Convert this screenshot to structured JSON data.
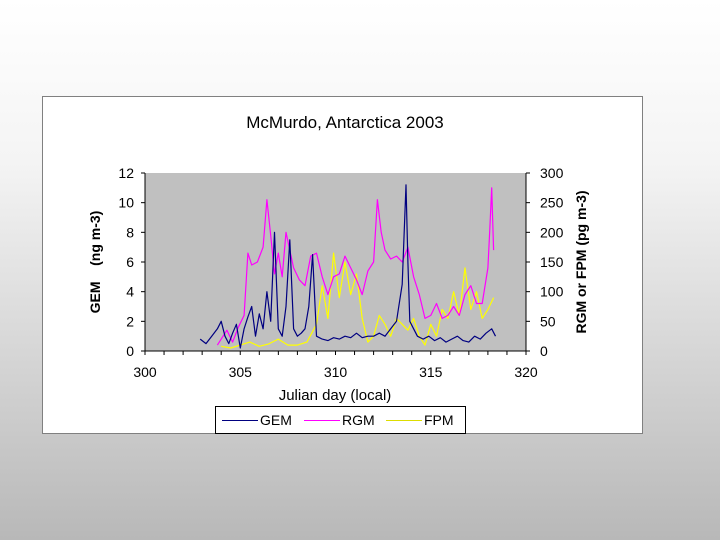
{
  "chart_data": {
    "type": "line",
    "title": "McMurdo, Antarctica 2003",
    "xlabel": "Julian day (local)",
    "ylabel_left": "GEM    (ng m-3)",
    "ylabel_right": "RGM or FPM (pg m-3)",
    "xlim": [
      300,
      320
    ],
    "ylim_left": [
      0,
      12
    ],
    "ylim_right": [
      0,
      300
    ],
    "xticks": [
      "300",
      "305",
      "310",
      "315",
      "320"
    ],
    "yticks_left": [
      "0",
      "2",
      "4",
      "6",
      "8",
      "10",
      "12"
    ],
    "yticks_right": [
      "0",
      "50",
      "100",
      "150",
      "200",
      "250",
      "300"
    ],
    "plot_background": "#c0c0c0",
    "legend_position": "bottom",
    "series": [
      {
        "name": "GEM",
        "axis": "left",
        "color": "#000080",
        "x": [
          302.9,
          303.2,
          303.5,
          303.8,
          304.0,
          304.2,
          304.4,
          304.6,
          304.8,
          305.0,
          305.2,
          305.4,
          305.6,
          305.8,
          306.0,
          306.2,
          306.4,
          306.6,
          306.8,
          307.0,
          307.2,
          307.4,
          307.6,
          307.8,
          308.0,
          308.2,
          308.4,
          308.6,
          308.8,
          309.0,
          309.3,
          309.6,
          309.9,
          310.2,
          310.5,
          310.8,
          311.1,
          311.4,
          311.7,
          312.0,
          312.3,
          312.6,
          312.9,
          313.2,
          313.5,
          313.7,
          313.8,
          313.9,
          314.1,
          314.3,
          314.6,
          314.9,
          315.2,
          315.5,
          315.8,
          316.1,
          316.4,
          316.7,
          317.0,
          317.3,
          317.6,
          317.9,
          318.2,
          318.4
        ],
        "values": [
          0.8,
          0.5,
          1.0,
          1.5,
          2.0,
          1.0,
          0.5,
          1.2,
          1.8,
          0.2,
          1.5,
          2.3,
          3.0,
          1.0,
          2.5,
          1.5,
          4.0,
          2.0,
          8.0,
          1.5,
          1.0,
          3.0,
          7.5,
          1.5,
          1.0,
          1.2,
          1.5,
          3.0,
          6.5,
          1.0,
          0.8,
          0.7,
          0.9,
          0.8,
          1.0,
          0.9,
          1.2,
          0.9,
          1.0,
          1.0,
          1.2,
          1.0,
          1.5,
          2.0,
          4.5,
          11.2,
          6.0,
          2.0,
          1.5,
          1.0,
          0.8,
          1.0,
          0.7,
          0.9,
          0.6,
          0.8,
          1.0,
          0.7,
          0.6,
          1.0,
          0.8,
          1.2,
          1.5,
          1.0
        ]
      },
      {
        "name": "RGM",
        "axis": "right",
        "color": "#ff00ff",
        "x": [
          303.8,
          304.0,
          304.3,
          304.6,
          304.9,
          305.2,
          305.4,
          305.6,
          305.9,
          306.2,
          306.4,
          306.6,
          306.8,
          307.0,
          307.2,
          307.4,
          307.6,
          307.8,
          308.1,
          308.4,
          308.7,
          309.0,
          309.3,
          309.6,
          309.9,
          310.2,
          310.5,
          310.8,
          311.1,
          311.4,
          311.7,
          312.0,
          312.2,
          312.4,
          312.6,
          312.9,
          313.2,
          313.5,
          313.8,
          314.1,
          314.4,
          314.7,
          315.0,
          315.3,
          315.6,
          315.9,
          316.2,
          316.5,
          316.8,
          317.1,
          317.4,
          317.7,
          318.0,
          318.1,
          318.2,
          318.3
        ],
        "values": [
          10,
          20,
          35,
          15,
          40,
          60,
          165,
          145,
          150,
          175,
          255,
          195,
          130,
          165,
          125,
          200,
          170,
          140,
          120,
          110,
          160,
          165,
          125,
          95,
          125,
          130,
          160,
          140,
          120,
          95,
          135,
          150,
          255,
          200,
          170,
          155,
          160,
          150,
          175,
          125,
          95,
          55,
          60,
          80,
          55,
          60,
          75,
          60,
          95,
          110,
          80,
          80,
          140,
          205,
          275,
          170
        ]
      },
      {
        "name": "FPM",
        "axis": "right",
        "color": "#ffff00",
        "x": [
          304.0,
          304.5,
          305.0,
          305.5,
          306.0,
          306.5,
          307.0,
          307.5,
          308.0,
          308.5,
          309.0,
          309.3,
          309.6,
          309.9,
          310.2,
          310.5,
          310.8,
          311.1,
          311.4,
          311.7,
          312.0,
          312.3,
          312.6,
          312.9,
          313.2,
          313.5,
          313.8,
          314.1,
          314.4,
          314.7,
          315.0,
          315.3,
          315.6,
          315.9,
          316.2,
          316.5,
          316.8,
          317.1,
          317.4,
          317.7,
          318.0,
          318.3
        ],
        "values": [
          8,
          5,
          10,
          15,
          8,
          12,
          20,
          10,
          10,
          15,
          45,
          110,
          55,
          165,
          90,
          150,
          95,
          130,
          55,
          15,
          25,
          60,
          45,
          25,
          55,
          45,
          35,
          55,
          25,
          10,
          45,
          25,
          70,
          55,
          100,
          60,
          140,
          70,
          100,
          55,
          70,
          90
        ]
      }
    ]
  }
}
